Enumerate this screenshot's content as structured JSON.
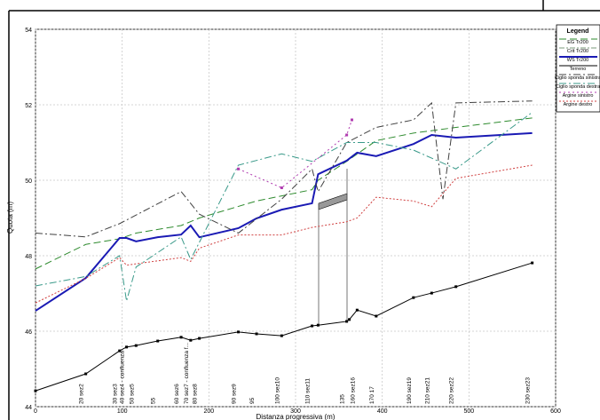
{
  "chart_data": {
    "type": "line",
    "y_label": "Quota (m)",
    "x_label": "Distanza progressiva (m)",
    "xlim": [
      0,
      600
    ],
    "xticks": [
      0,
      100,
      200,
      300,
      400,
      500,
      600
    ],
    "ylim": [
      44,
      54
    ],
    "yticks": [
      44,
      46,
      48,
      50,
      52,
      54
    ],
    "grid": true,
    "legend_title": "Legend",
    "series": [
      {
        "name": "EG  Tr200",
        "color": "#2e8b2e",
        "dash": "8 4",
        "x": [
          0,
          58,
          97,
          116,
          168,
          189,
          255,
          319,
          326,
          359,
          393,
          436,
          485,
          573
        ],
        "values": [
          47.65,
          48.3,
          48.45,
          48.6,
          48.8,
          49.0,
          49.45,
          49.75,
          50.0,
          50.5,
          51.05,
          51.25,
          51.4,
          51.65
        ]
      },
      {
        "name": "Crit  Tr200",
        "color": "#7a9a7a",
        "dash": "6 2 2 2",
        "x": [],
        "values": []
      },
      {
        "name": "WS  Tr200",
        "color": "#1a1ab4",
        "dash": "",
        "width": 2,
        "x": [
          0,
          58,
          97,
          105,
          116,
          141,
          168,
          179,
          189,
          234,
          255,
          284,
          319,
          326,
          359,
          371,
          393,
          436,
          457,
          485,
          573
        ],
        "values": [
          46.54,
          47.41,
          48.47,
          48.47,
          48.38,
          48.49,
          48.56,
          48.8,
          48.49,
          48.73,
          48.99,
          49.22,
          49.39,
          50.16,
          50.52,
          50.73,
          50.64,
          50.96,
          51.2,
          51.13,
          51.25
        ]
      },
      {
        "name": "Terreno",
        "color": "#000000",
        "dash": "",
        "width": 1,
        "dots": true,
        "x": [
          0,
          58,
          97,
          105,
          116,
          141,
          168,
          179,
          189,
          234,
          255,
          284,
          319,
          326,
          359,
          362,
          371,
          393,
          436,
          457,
          485,
          573
        ],
        "values": [
          44.42,
          44.87,
          45.48,
          45.58,
          45.62,
          45.74,
          45.84,
          45.76,
          45.81,
          45.98,
          45.93,
          45.88,
          46.14,
          46.16,
          46.26,
          46.31,
          46.56,
          46.4,
          46.89,
          47.01,
          47.18,
          47.81
        ]
      },
      {
        "name": "Ciglio sponda sinistra",
        "color": "#404040",
        "dash": "8 3 2 3",
        "x": [
          0,
          58,
          97,
          168,
          189,
          234,
          284,
          319,
          326,
          359,
          393,
          436,
          457,
          470,
          485,
          573
        ],
        "values": [
          48.6,
          48.5,
          48.85,
          49.7,
          49.1,
          48.6,
          49.5,
          50.3,
          49.7,
          51.0,
          51.4,
          51.6,
          52.05,
          49.5,
          52.05,
          52.1
        ]
      },
      {
        "name": "Ciglio sponda destra",
        "color": "#3a9a8a",
        "dash": "8 3 2 3",
        "x": [
          0,
          58,
          97,
          105,
          116,
          168,
          179,
          234,
          284,
          319,
          359,
          393,
          436,
          485,
          573
        ],
        "values": [
          47.2,
          47.45,
          48.0,
          46.8,
          47.7,
          48.5,
          47.9,
          50.4,
          50.7,
          50.5,
          51.0,
          51.0,
          50.8,
          50.3,
          51.8
        ]
      },
      {
        "name": "Argine sinistro",
        "color": "#b03cb0",
        "dash": "2 3",
        "dots": true,
        "x": [
          234,
          284,
          359,
          365
        ],
        "values": [
          50.3,
          49.8,
          51.2,
          51.6
        ]
      },
      {
        "name": "Argine destro",
        "color": "#d04040",
        "dash": "2 2",
        "x": [
          0,
          58,
          97,
          105,
          168,
          179,
          189,
          234,
          284,
          319,
          359,
          371,
          393,
          436,
          457,
          485,
          573
        ],
        "values": [
          46.75,
          47.4,
          47.95,
          47.75,
          47.95,
          47.85,
          48.2,
          48.55,
          48.55,
          48.75,
          48.9,
          49.0,
          49.55,
          49.45,
          49.3,
          50.05,
          50.4
        ]
      }
    ],
    "annotations": [
      {
        "x": 58,
        "text": "20 sez2"
      },
      {
        "x": 97,
        "text": "30 sez3"
      },
      {
        "x": 105,
        "text": "40 sez4 - confluenza"
      },
      {
        "x": 116,
        "text": "50 sez5"
      },
      {
        "x": 141,
        "text": "55"
      },
      {
        "x": 168,
        "text": "60 sez6"
      },
      {
        "x": 179,
        "text": "70 sez7 - confluenza f..."
      },
      {
        "x": 189,
        "text": "80 sez8"
      },
      {
        "x": 234,
        "text": "90 sez9"
      },
      {
        "x": 255,
        "text": "95"
      },
      {
        "x": 284,
        "text": "100 sez10"
      },
      {
        "x": 319,
        "text": "110 sez11"
      },
      {
        "x": 359,
        "text": "135"
      },
      {
        "x": 371,
        "text": "160 sez16"
      },
      {
        "x": 393,
        "text": "170 17"
      },
      {
        "x": 436,
        "text": "190 sez19"
      },
      {
        "x": 457,
        "text": "210 sez21"
      },
      {
        "x": 485,
        "text": "220 sez22"
      },
      {
        "x": 573,
        "text": "230 sez23"
      }
    ]
  }
}
